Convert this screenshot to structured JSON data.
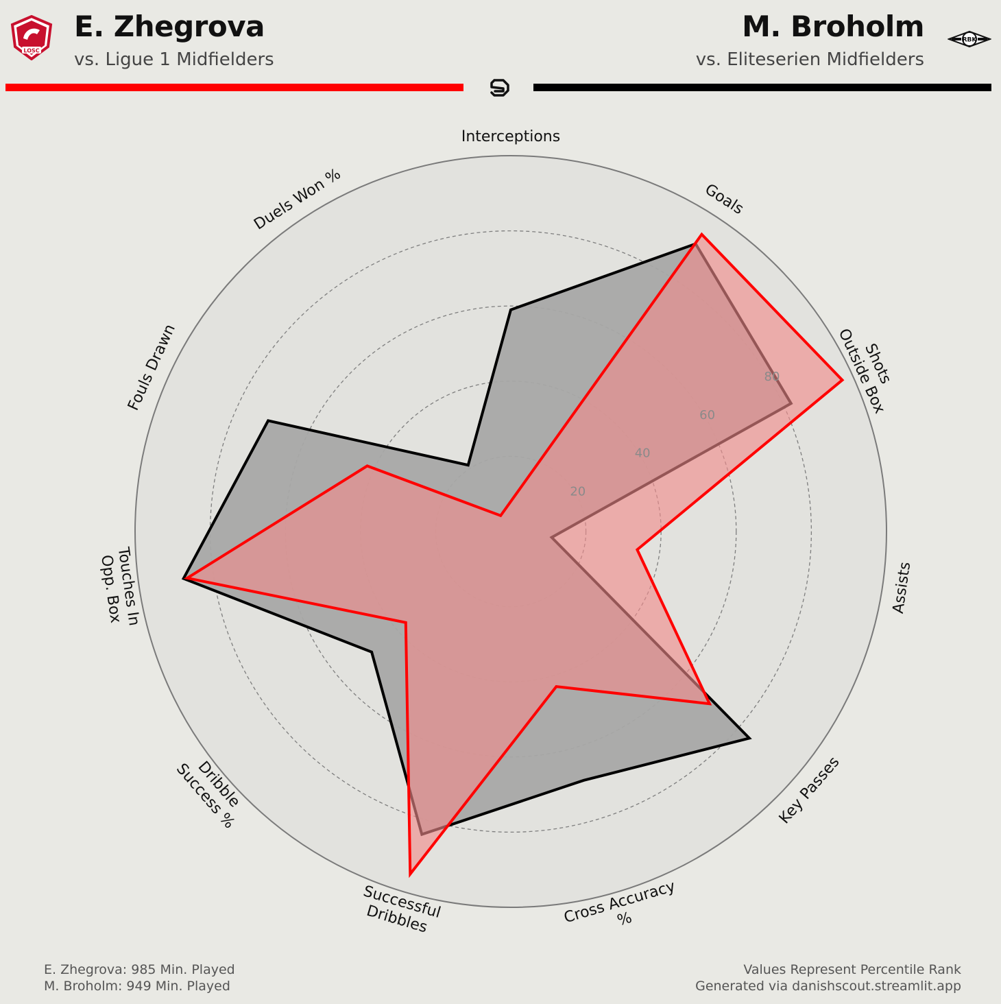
{
  "header": {
    "left_player": "E. Zhegrova",
    "left_subtitle": "vs. Ligue 1 Midfielders",
    "right_player": "M. Broholm",
    "right_subtitle": "vs. Eliteserien Midfielders",
    "left_club_badge": "LOSC",
    "right_club_badge": "RBK",
    "left_color": "#ff0000",
    "right_color": "#000000"
  },
  "footer": {
    "left_line1": "E. Zhegrova: 985 Min. Played",
    "left_line2": "M. Broholm: 949 Min. Played",
    "right_line1": "Values Represent Percentile Rank",
    "right_line2": "Generated via danishscout.streamlit.app"
  },
  "chart_data": {
    "type": "radar",
    "categories": [
      "Interceptions",
      "Goals",
      "Shots Outside Box",
      "Assists",
      "Key Passes",
      "Cross Accuracy %",
      "Successful Dribbles",
      "Dribble Success %",
      "Touches In Opp. Box",
      "Fouls Drawn",
      "Duels Won %"
    ],
    "rticks": [
      20,
      40,
      60,
      80
    ],
    "rlim": [
      0,
      100
    ],
    "series": [
      {
        "name": "M. Broholm",
        "color": "#000000",
        "fill": "#a8a8a6",
        "values": [
          59,
          91,
          82,
          11,
          84,
          69,
          84,
          49,
          88,
          71,
          21
        ]
      },
      {
        "name": "E. Zhegrova",
        "color": "#ff0000",
        "fill": "#f08a8a",
        "values": [
          8,
          94,
          97,
          34,
          70,
          43,
          95,
          37,
          87,
          42,
          5
        ]
      }
    ]
  }
}
